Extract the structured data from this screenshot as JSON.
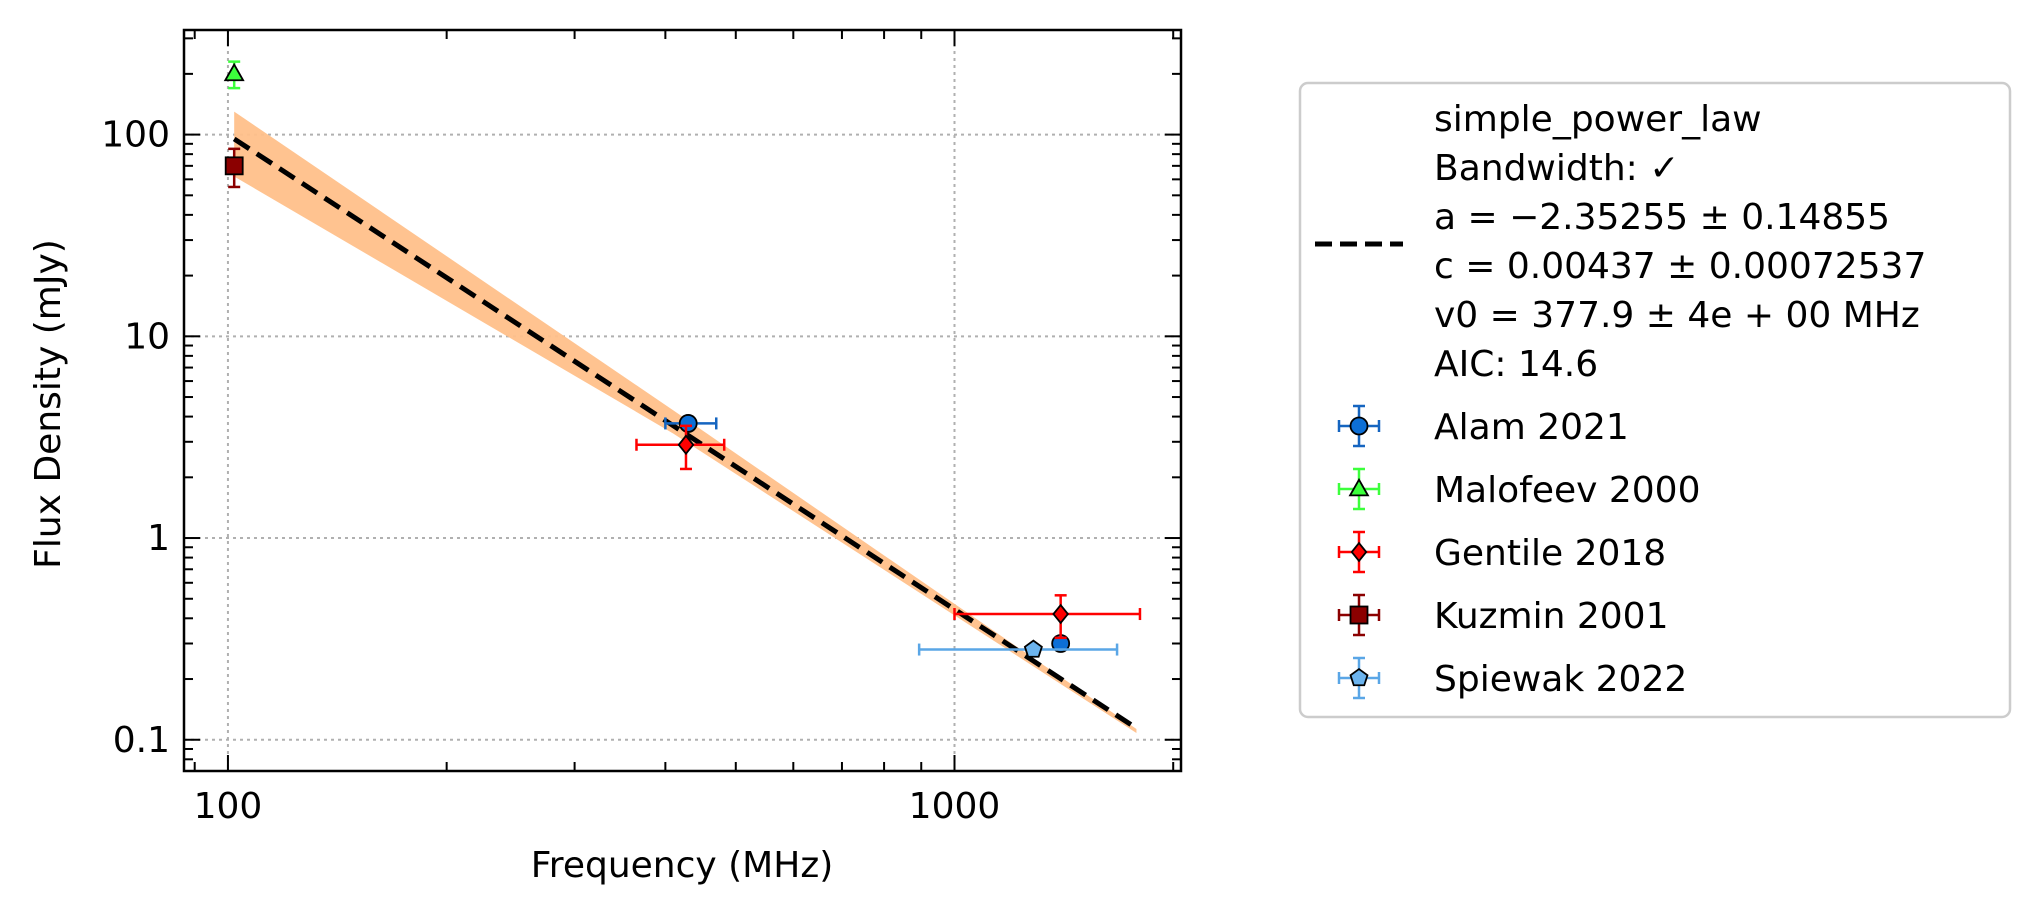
{
  "chart_data": {
    "type": "scatter",
    "title": "",
    "xlabel": "Frequency (MHz)",
    "ylabel": "Flux Density (mJy)",
    "xscale": "log",
    "yscale": "log",
    "xlim": [
      87,
      2050
    ],
    "ylim": [
      0.07,
      330
    ],
    "xticks": [
      {
        "value": 100,
        "label": "100"
      },
      {
        "value": 1000,
        "label": "1000"
      }
    ],
    "yticks": [
      {
        "value": 0.1,
        "label": "0.1"
      },
      {
        "value": 1,
        "label": "1"
      },
      {
        "value": 10,
        "label": "10"
      },
      {
        "value": 100,
        "label": "100"
      }
    ],
    "grid": true,
    "legend_position": "outside-right",
    "fit": {
      "name": "simple_power_law",
      "legend_lines": [
        "simple_power_law",
        "Bandwidth: ✓",
        "a = −2.35255 ± 0.14855",
        "c = 0.00437 ± 0.00072537",
        "v0 = 377.9 ± 4e + 00 MHz",
        "AIC: 14.6"
      ],
      "a": -2.35255,
      "c": 0.00437,
      "v0": 377.9,
      "x_range": [
        102,
        1780
      ],
      "band_low": [
        [
          102,
          62
        ],
        [
          410,
          3.3
        ],
        [
          1780,
          0.108
        ]
      ],
      "band_high": [
        [
          102,
          130
        ],
        [
          410,
          4.3
        ],
        [
          1780,
          0.113
        ]
      ],
      "line_color": "#000000",
      "band_color": "#ffc08a"
    },
    "series": [
      {
        "name": "Alam 2021",
        "marker": "circle",
        "color": "#0d6fd6",
        "ecolor": "#1565c0",
        "points": [
          {
            "x": 430,
            "y": 3.7,
            "xerr": [
              30,
              40
            ],
            "yerr": [
              0.2,
              0.2
            ]
          },
          {
            "x": 1400,
            "y": 0.3,
            "xerr": [
              0,
              0
            ],
            "yerr": [
              0.012,
              0.012
            ]
          }
        ]
      },
      {
        "name": "Malofeev 2000",
        "marker": "triangle",
        "color": "#3cff3c",
        "ecolor": "#3cff3c",
        "points": [
          {
            "x": 102,
            "y": 200,
            "xerr": [
              0,
              0
            ],
            "yerr": [
              30,
              30
            ]
          }
        ]
      },
      {
        "name": "Gentile 2018",
        "marker": "diamond",
        "color": "#ff0000",
        "ecolor": "#ff0000",
        "points": [
          {
            "x": 427,
            "y": 2.9,
            "xerr": [
              62,
              55
            ],
            "yerr": [
              0.7,
              0.7
            ]
          },
          {
            "x": 1400,
            "y": 0.42,
            "xerr": [
              400,
              400
            ],
            "yerr": [
              0.1,
              0.1
            ]
          }
        ]
      },
      {
        "name": "Kuzmin 2001",
        "marker": "square",
        "color": "#8b0000",
        "ecolor": "#8b0000",
        "points": [
          {
            "x": 102,
            "y": 70,
            "xerr": [
              0,
              0
            ],
            "yerr": [
              15,
              15
            ]
          }
        ]
      },
      {
        "name": "Spiewak 2022",
        "marker": "pentagon",
        "color": "#6cb4ee",
        "ecolor": "#5aa6e6",
        "points": [
          {
            "x": 1284,
            "y": 0.28,
            "xerr": [
              390,
              390
            ],
            "yerr": [
              0,
              0
            ]
          }
        ]
      }
    ]
  }
}
